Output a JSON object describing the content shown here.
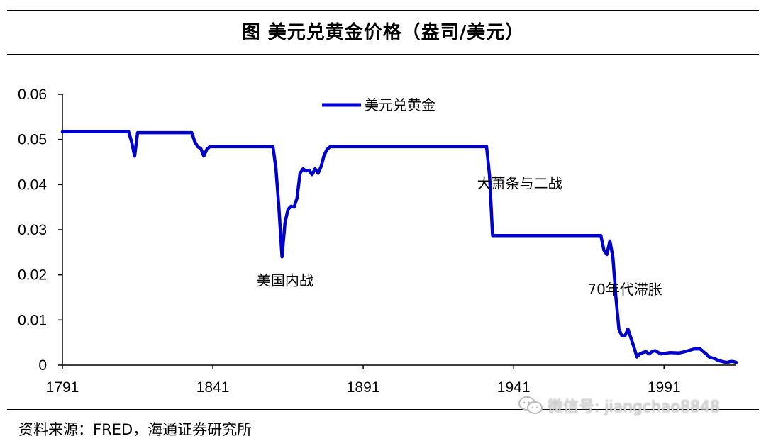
{
  "header": {
    "title": "图  美元兑黄金价格（盎司/美元）"
  },
  "footer": {
    "source": "资料来源：FRED，海通证券研究所",
    "watermark": "微信号: jiangchao8848"
  },
  "chart_data": {
    "type": "line",
    "title": "图  美元兑黄金价格（盎司/美元）",
    "xlabel": "",
    "ylabel": "",
    "xlim": [
      1791,
      2015
    ],
    "ylim": [
      0,
      0.06
    ],
    "xticks": [
      "1791",
      "1841",
      "1891",
      "1941",
      "1991"
    ],
    "xtick_values": [
      1791,
      1841,
      1891,
      1941,
      1991
    ],
    "yticks": [
      "0",
      "0.01",
      "0.02",
      "0.03",
      "0.04",
      "0.05",
      "0.06"
    ],
    "ytick_values": [
      0,
      0.01,
      0.02,
      0.03,
      0.04,
      0.05,
      0.06
    ],
    "grid": false,
    "legend_position": "top-center",
    "line_color": "#0000cc",
    "series": [
      {
        "name": "美元兑黄金",
        "x": [
          1791,
          1813,
          1814,
          1815,
          1816,
          1834,
          1835,
          1836,
          1837,
          1838,
          1839,
          1840,
          1861,
          1862,
          1863,
          1864,
          1865,
          1866,
          1867,
          1868,
          1869,
          1870,
          1871,
          1872,
          1873,
          1874,
          1875,
          1876,
          1877,
          1878,
          1879,
          1880,
          1932,
          1933,
          1934,
          1970,
          1971,
          1972,
          1973,
          1974,
          1975,
          1976,
          1977,
          1978,
          1979,
          1980,
          1981,
          1982,
          1983,
          1984,
          1985,
          1986,
          1987,
          1988,
          1990,
          1993,
          1996,
          1998,
          2001,
          2003,
          2005,
          2006,
          2008,
          2009,
          2011,
          2012,
          2013,
          2014,
          2015
        ],
        "values": [
          0.0517,
          0.0517,
          0.0495,
          0.0463,
          0.0515,
          0.0515,
          0.0495,
          0.0484,
          0.048,
          0.0463,
          0.0478,
          0.0484,
          0.0484,
          0.0435,
          0.0345,
          0.024,
          0.0315,
          0.0345,
          0.0352,
          0.035,
          0.037,
          0.0425,
          0.0435,
          0.043,
          0.0432,
          0.0422,
          0.0435,
          0.0425,
          0.044,
          0.0465,
          0.0478,
          0.0484,
          0.0484,
          0.042,
          0.0287,
          0.0287,
          0.0255,
          0.0245,
          0.0275,
          0.024,
          0.015,
          0.008,
          0.0065,
          0.0065,
          0.008,
          0.006,
          0.004,
          0.0018,
          0.0025,
          0.0028,
          0.003,
          0.0025,
          0.003,
          0.0032,
          0.0025,
          0.0028,
          0.0027,
          0.003,
          0.0036,
          0.0036,
          0.0025,
          0.0018,
          0.0014,
          0.001,
          0.0007,
          0.0006,
          0.0008,
          0.0008,
          0.0006
        ]
      }
    ],
    "annotations": [
      {
        "text": "美国内战",
        "x": 1865,
        "y": 0.0177
      },
      {
        "text": "大萧条与二战",
        "x": 1943,
        "y": 0.0392
      },
      {
        "text": "70年代滞胀",
        "x": 1978,
        "y": 0.0157
      }
    ]
  }
}
